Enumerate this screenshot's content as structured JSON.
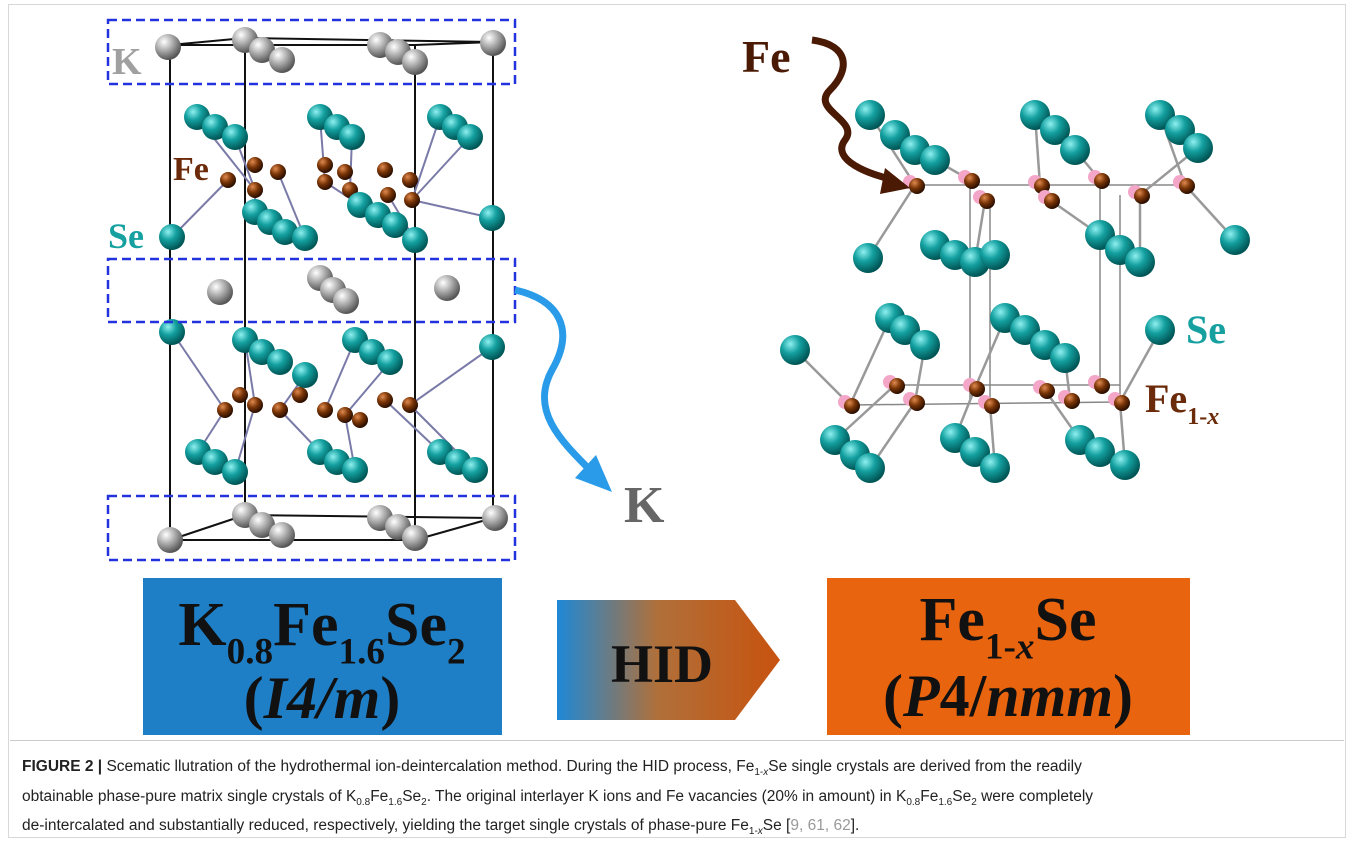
{
  "figure": {
    "left_labels": {
      "k": "K",
      "fe": "Fe",
      "se": "Se"
    },
    "removed_label": "K",
    "right_labels": {
      "fe": "Fe",
      "se": "Se",
      "fe_x": [
        {
          "t": "Fe"
        },
        {
          "sub": "1-"
        },
        {
          "subi": "x"
        }
      ]
    },
    "left_box": {
      "formula": [
        {
          "t": "K"
        },
        {
          "sub": "0.8"
        },
        {
          "t": "Fe"
        },
        {
          "sub": "1.6"
        },
        {
          "t": "Se"
        },
        {
          "sub": "2"
        }
      ],
      "group": [
        {
          "t": "("
        },
        {
          "i": "I4/m"
        },
        {
          "t": ")"
        }
      ]
    },
    "arrow_box": "HID",
    "right_box": {
      "formula": [
        {
          "t": "Fe"
        },
        {
          "sub": "1-"
        },
        {
          "subi": "x"
        },
        {
          "t": "Se"
        }
      ],
      "group": [
        {
          "t": "("
        },
        {
          "i": "P"
        },
        {
          "t": "4/"
        },
        {
          "i": "nmm"
        },
        {
          "t": ")"
        }
      ]
    }
  },
  "caption": {
    "lines": [
      [
        {
          "b": "FIGURE 2 |"
        },
        {
          "t": " Scematic llutration of the hydrothermal ion-deintercalation method. During the HID process, Fe"
        },
        {
          "sub": "1-"
        },
        {
          "subi": "x"
        },
        {
          "t": "Se single crystals are derived from the readily"
        }
      ],
      [
        {
          "t": "obtainable phase-pure matrix single crystals of K"
        },
        {
          "sub": "0.8"
        },
        {
          "t": "Fe"
        },
        {
          "sub": "1.6"
        },
        {
          "t": "Se"
        },
        {
          "sub": "2"
        },
        {
          "t": ". The original interlayer K ions and Fe vacancies (20% in amount) in K"
        },
        {
          "sub": "0.8"
        },
        {
          "t": "Fe"
        },
        {
          "sub": "1.6"
        },
        {
          "t": "Se"
        },
        {
          "sub": "2"
        },
        {
          "t": " were completely"
        }
      ],
      [
        {
          "t": "de-intercalated and substantially reduced, respectively, yielding the target single crystals of phase-pure Fe"
        },
        {
          "sub": "1-"
        },
        {
          "subi": "x"
        },
        {
          "t": "Se ["
        },
        {
          "ref": "9, 61, 62"
        },
        {
          "t": "]."
        }
      ]
    ]
  }
}
